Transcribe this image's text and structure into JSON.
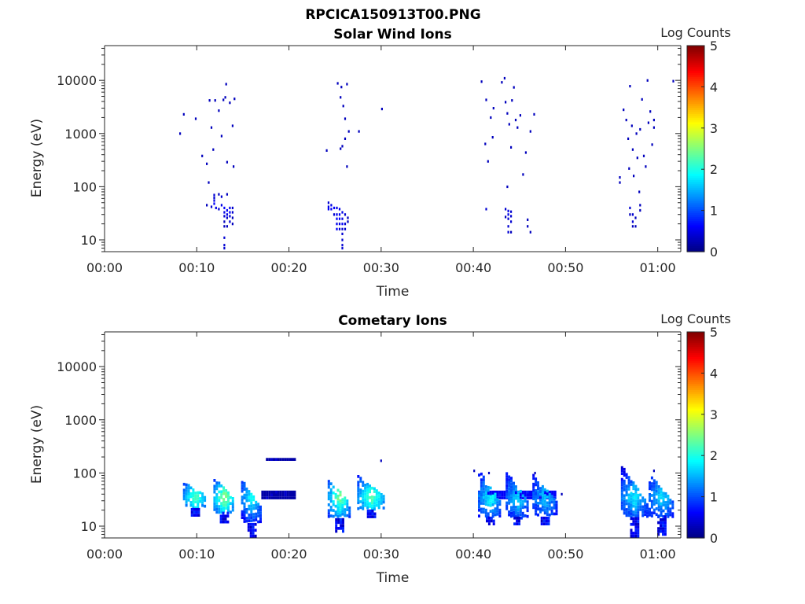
{
  "figure_title": "RPCICA150913T00.PNG",
  "chart_data": [
    {
      "type": "heatmap",
      "title": "Solar Wind Ions",
      "xlabel": "Time",
      "ylabel": "Energy (eV)",
      "x_unit": "minutes",
      "xlim": [
        0,
        62.5
      ],
      "x_ticks": [
        0,
        10,
        20,
        30,
        40,
        50,
        60
      ],
      "x_tick_labels": [
        "00:00",
        "00:10",
        "00:20",
        "00:30",
        "00:40",
        "00:50",
        "01:00"
      ],
      "y_scale": "log",
      "ylim": [
        6,
        45000
      ],
      "y_ticks": [
        10,
        100,
        1000,
        10000
      ],
      "y_tick_labels": [
        "10",
        "100",
        "1000",
        "10000"
      ],
      "colorbar": {
        "label": "Log Counts",
        "range": [
          0,
          5
        ],
        "ticks": [
          "0",
          "1",
          "2",
          "3",
          "4",
          "5"
        ],
        "colormap": "jet"
      },
      "points": [
        [
          8.1,
          1000,
          0.3
        ],
        [
          8.5,
          2300,
          0.3
        ],
        [
          9.8,
          1900,
          0.3
        ],
        [
          10.5,
          380,
          0.3
        ],
        [
          11.0,
          270,
          0.3
        ],
        [
          11.3,
          4200,
          0.3
        ],
        [
          11.5,
          1300,
          0.3
        ],
        [
          11.7,
          500,
          0.3
        ],
        [
          11.9,
          4200,
          0.3
        ],
        [
          12.3,
          2700,
          0.3
        ],
        [
          12.6,
          900,
          0.3
        ],
        [
          12.8,
          4300,
          0.3
        ],
        [
          13.0,
          4800,
          0.3
        ],
        [
          13.1,
          8500,
          0.3
        ],
        [
          13.2,
          290,
          0.3
        ],
        [
          13.5,
          3800,
          0.3
        ],
        [
          13.8,
          1400,
          0.3
        ],
        [
          13.9,
          240,
          0.3
        ],
        [
          14.0,
          4500,
          0.3
        ],
        [
          11.2,
          120,
          0.3
        ],
        [
          11.8,
          70,
          0.4
        ],
        [
          11.8,
          62,
          0.4
        ],
        [
          11.8,
          55,
          0.5
        ],
        [
          11.8,
          48,
          0.6
        ],
        [
          11.5,
          42,
          0.4
        ],
        [
          12.0,
          40,
          0.5
        ],
        [
          12.3,
          38,
          0.4
        ],
        [
          12.3,
          72,
          0.3
        ],
        [
          12.6,
          65,
          0.4
        ],
        [
          12.6,
          45,
          0.5
        ],
        [
          12.9,
          40,
          0.6
        ],
        [
          12.9,
          33,
          0.5
        ],
        [
          12.9,
          28,
          0.4
        ],
        [
          12.9,
          22,
          0.3
        ],
        [
          12.9,
          18,
          0.3
        ],
        [
          12.9,
          11,
          0.4
        ],
        [
          12.9,
          8,
          0.4
        ],
        [
          12.9,
          7,
          0.4
        ],
        [
          13.2,
          72,
          0.3
        ],
        [
          13.2,
          36,
          0.6
        ],
        [
          13.2,
          30,
          0.5
        ],
        [
          13.2,
          26,
          0.4
        ],
        [
          13.2,
          18,
          0.3
        ],
        [
          13.5,
          40,
          0.5
        ],
        [
          13.5,
          33,
          0.6
        ],
        [
          13.5,
          28,
          0.4
        ],
        [
          13.5,
          22,
          0.4
        ],
        [
          13.8,
          40,
          0.4
        ],
        [
          13.8,
          33,
          0.4
        ],
        [
          13.8,
          26,
          0.3
        ],
        [
          13.8,
          20,
          0.3
        ],
        [
          11.0,
          45,
          0.3
        ],
        [
          25.2,
          8800,
          0.3
        ],
        [
          25.5,
          4800,
          0.3
        ],
        [
          25.6,
          7500,
          0.3
        ],
        [
          25.8,
          3300,
          0.3
        ],
        [
          26.0,
          1900,
          0.3
        ],
        [
          26.2,
          8500,
          0.3
        ],
        [
          26.4,
          1100,
          0.3
        ],
        [
          26.0,
          800,
          0.3
        ],
        [
          25.7,
          580,
          0.3
        ],
        [
          25.5,
          520,
          0.3
        ],
        [
          24.0,
          480,
          0.3
        ],
        [
          26.2,
          240,
          0.3
        ],
        [
          27.5,
          1100,
          0.3
        ],
        [
          30.0,
          2900,
          0.3
        ],
        [
          24.2,
          50,
          0.4
        ],
        [
          24.2,
          42,
          0.5
        ],
        [
          24.2,
          38,
          0.6
        ],
        [
          24.5,
          45,
          0.5
        ],
        [
          24.5,
          38,
          0.6
        ],
        [
          24.8,
          40,
          0.6
        ],
        [
          24.8,
          30,
          0.4
        ],
        [
          25.1,
          40,
          0.5
        ],
        [
          25.1,
          30,
          0.5
        ],
        [
          25.1,
          25,
          0.6
        ],
        [
          25.1,
          20,
          0.5
        ],
        [
          25.1,
          16,
          0.6
        ],
        [
          25.4,
          38,
          0.5
        ],
        [
          25.4,
          30,
          0.6
        ],
        [
          25.4,
          25,
          0.6
        ],
        [
          25.4,
          20,
          0.5
        ],
        [
          25.4,
          16,
          0.4
        ],
        [
          25.7,
          33,
          0.5
        ],
        [
          25.7,
          25,
          0.5
        ],
        [
          25.7,
          20,
          0.6
        ],
        [
          25.7,
          16,
          0.4
        ],
        [
          25.7,
          13,
          0.4
        ],
        [
          25.7,
          10,
          0.4
        ],
        [
          25.7,
          8,
          0.4
        ],
        [
          25.7,
          7,
          0.4
        ],
        [
          26.0,
          30,
          0.4
        ],
        [
          26.0,
          20,
          0.4
        ],
        [
          26.0,
          16,
          0.4
        ],
        [
          26.3,
          26,
          0.3
        ],
        [
          26.3,
          22,
          0.3
        ],
        [
          40.8,
          9500,
          0.3
        ],
        [
          41.2,
          640,
          0.3
        ],
        [
          41.3,
          4300,
          0.3
        ],
        [
          41.5,
          300,
          0.3
        ],
        [
          41.8,
          2000,
          0.3
        ],
        [
          42.0,
          850,
          0.3
        ],
        [
          42.1,
          3000,
          0.3
        ],
        [
          43.0,
          9200,
          0.3
        ],
        [
          43.3,
          11000,
          0.3
        ],
        [
          43.4,
          3900,
          0.3
        ],
        [
          43.6,
          2400,
          0.3
        ],
        [
          44.0,
          550,
          0.3
        ],
        [
          43.8,
          1500,
          0.3
        ],
        [
          44.1,
          4200,
          0.3
        ],
        [
          44.3,
          7400,
          0.3
        ],
        [
          44.5,
          1800,
          0.3
        ],
        [
          44.7,
          1300,
          0.3
        ],
        [
          45.0,
          2200,
          0.3
        ],
        [
          45.3,
          170,
          0.3
        ],
        [
          45.6,
          440,
          0.3
        ],
        [
          46.1,
          1100,
          0.3
        ],
        [
          46.5,
          2300,
          0.3
        ],
        [
          43.6,
          100,
          0.3
        ],
        [
          41.3,
          38,
          0.4
        ],
        [
          43.4,
          38,
          0.4
        ],
        [
          43.4,
          27,
          0.3
        ],
        [
          43.7,
          35,
          0.5
        ],
        [
          43.7,
          30,
          0.5
        ],
        [
          43.7,
          25,
          0.4
        ],
        [
          43.7,
          18,
          0.4
        ],
        [
          43.7,
          14,
          0.4
        ],
        [
          44.0,
          34,
          0.4
        ],
        [
          44.0,
          28,
          0.4
        ],
        [
          44.0,
          22,
          0.4
        ],
        [
          44.0,
          14,
          0.3
        ],
        [
          45.8,
          24,
          0.3
        ],
        [
          45.8,
          18,
          0.3
        ],
        [
          46.1,
          14,
          0.3
        ],
        [
          56.2,
          2800,
          0.3
        ],
        [
          56.5,
          1800,
          0.3
        ],
        [
          56.7,
          800,
          0.3
        ],
        [
          56.8,
          220,
          0.3
        ],
        [
          56.9,
          7800,
          0.3
        ],
        [
          57.1,
          1400,
          0.3
        ],
        [
          57.2,
          500,
          0.3
        ],
        [
          57.3,
          160,
          0.3
        ],
        [
          57.6,
          1000,
          0.3
        ],
        [
          57.7,
          350,
          0.3
        ],
        [
          58.0,
          1200,
          0.3
        ],
        [
          58.2,
          4400,
          0.3
        ],
        [
          58.4,
          380,
          0.3
        ],
        [
          58.6,
          240,
          0.3
        ],
        [
          58.8,
          10000,
          0.3
        ],
        [
          58.9,
          1600,
          0.3
        ],
        [
          59.1,
          2600,
          0.3
        ],
        [
          59.3,
          620,
          0.3
        ],
        [
          59.5,
          1300,
          0.3
        ],
        [
          59.5,
          1800,
          0.3
        ],
        [
          61.6,
          9700,
          0.3
        ],
        [
          57.9,
          80,
          0.3
        ],
        [
          55.8,
          150,
          0.3
        ],
        [
          55.8,
          120,
          0.3
        ],
        [
          56.9,
          40,
          0.4
        ],
        [
          56.9,
          30,
          0.3
        ],
        [
          57.2,
          30,
          0.4
        ],
        [
          57.2,
          22,
          0.4
        ],
        [
          57.2,
          18,
          0.3
        ],
        [
          57.5,
          26,
          0.3
        ],
        [
          57.5,
          18,
          0.3
        ],
        [
          58.0,
          45,
          0.3
        ],
        [
          58.0,
          36,
          0.3
        ]
      ]
    },
    {
      "type": "heatmap",
      "title": "Cometary Ions",
      "xlabel": "Time",
      "ylabel": "Energy (eV)",
      "x_unit": "minutes",
      "xlim": [
        0,
        62.5
      ],
      "x_ticks": [
        0,
        10,
        20,
        30,
        40,
        50,
        60
      ],
      "x_tick_labels": [
        "00:00",
        "00:10",
        "00:20",
        "00:30",
        "00:40",
        "00:50",
        "01:00"
      ],
      "y_scale": "log",
      "ylim": [
        6,
        45000
      ],
      "y_ticks": [
        10,
        100,
        1000,
        10000
      ],
      "y_tick_labels": [
        "10",
        "100",
        "1000",
        "10000"
      ],
      "colorbar": {
        "label": "Log Counts",
        "range": [
          0,
          5
        ],
        "ticks": [
          "0",
          "1",
          "2",
          "3",
          "4",
          "5"
        ],
        "colormap": "jet"
      },
      "bursts": [
        {
          "t0": 8.5,
          "t1": 11.0,
          "emin": 22,
          "emax": 65,
          "peak": 2.0,
          "tail_min": 16
        },
        {
          "t0": 11.8,
          "t1": 14.0,
          "emin": 18,
          "emax": 80,
          "peak": 2.4,
          "tail_min": 12
        },
        {
          "t0": 14.8,
          "t1": 17.0,
          "emin": 12,
          "emax": 75,
          "peak": 1.7,
          "tail_min": 6.5
        },
        {
          "t0": 24.2,
          "t1": 26.6,
          "emin": 15,
          "emax": 75,
          "peak": 2.3,
          "tail_min": 8
        },
        {
          "t0": 27.4,
          "t1": 30.3,
          "emin": 20,
          "emax": 95,
          "peak": 2.1,
          "tail_min": 15
        },
        {
          "t0": 40.5,
          "t1": 43.0,
          "emin": 15,
          "emax": 115,
          "peak": 1.7,
          "tail_min": 11
        },
        {
          "t0": 43.5,
          "t1": 46.0,
          "emin": 15,
          "emax": 105,
          "peak": 1.5,
          "tail_min": 11
        },
        {
          "t0": 46.4,
          "t1": 49.0,
          "emin": 16,
          "emax": 90,
          "peak": 1.4,
          "tail_min": 11
        },
        {
          "t0": 56.0,
          "t1": 58.8,
          "emin": 15,
          "emax": 140,
          "peak": 1.6,
          "tail_min": 6.5
        },
        {
          "t0": 59.0,
          "t1": 61.7,
          "emin": 15,
          "emax": 95,
          "peak": 1.5,
          "tail_min": 7
        }
      ],
      "bands": [
        {
          "t0": 17.0,
          "t1": 20.6,
          "emin": 34,
          "emax": 44,
          "value": 0.2
        },
        {
          "t0": 17.5,
          "t1": 20.6,
          "emin": 180,
          "emax": 200,
          "value": 0.2
        },
        {
          "t0": 40.5,
          "t1": 49.0,
          "emin": 34,
          "emax": 44,
          "value": 0.6
        }
      ],
      "points": [
        [
          29.9,
          170,
          0.3
        ],
        [
          40.0,
          110,
          0.3
        ],
        [
          41.6,
          100,
          0.3
        ],
        [
          46.6,
          100,
          0.3
        ],
        [
          49.5,
          40,
          0.3
        ],
        [
          59.5,
          110,
          0.3
        ]
      ]
    }
  ]
}
